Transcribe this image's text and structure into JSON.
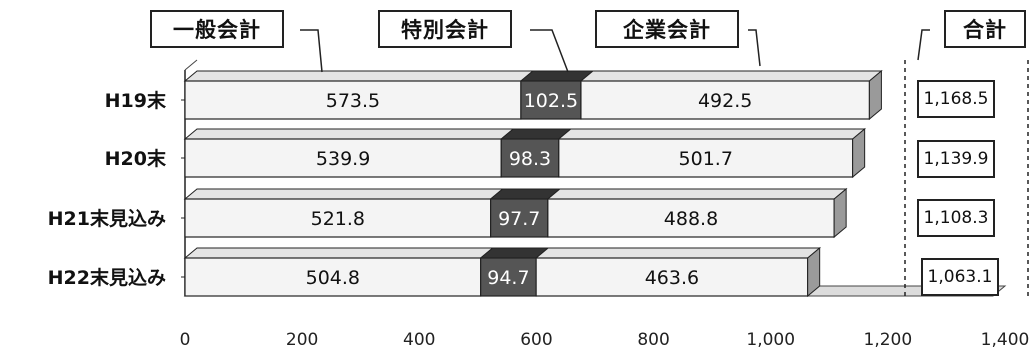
{
  "chart_data": {
    "type": "bar",
    "orientation": "horizontal",
    "stacked": true,
    "categories": [
      "H19末",
      "H20末",
      "H21末見込み",
      "H22末見込み"
    ],
    "series": [
      {
        "name": "一般会計",
        "values": [
          573.5,
          539.9,
          521.8,
          504.8
        ],
        "color": "#f4f4f4"
      },
      {
        "name": "特別会計",
        "values": [
          102.5,
          98.3,
          97.7,
          94.7
        ],
        "color": "#555555"
      },
      {
        "name": "企業会計",
        "values": [
          492.5,
          501.7,
          488.8,
          463.6
        ],
        "color": "#f4f4f4"
      }
    ],
    "totals_label": "合計",
    "totals": [
      "1,168.5",
      "1,139.9",
      "1,108.3",
      "1,063.1"
    ],
    "value_labels": [
      [
        "573.5",
        "102.5",
        "492.5"
      ],
      [
        "539.9",
        "98.3",
        "501.7"
      ],
      [
        "521.8",
        "97.7",
        "488.8"
      ],
      [
        "504.8",
        "94.7",
        "463.6"
      ]
    ],
    "xlim": [
      0,
      1400
    ],
    "xticks": [
      "0",
      "200",
      "400",
      "600",
      "800",
      "1,000",
      "1,200",
      "1,400"
    ],
    "legend_placement": "top",
    "grid": false
  }
}
